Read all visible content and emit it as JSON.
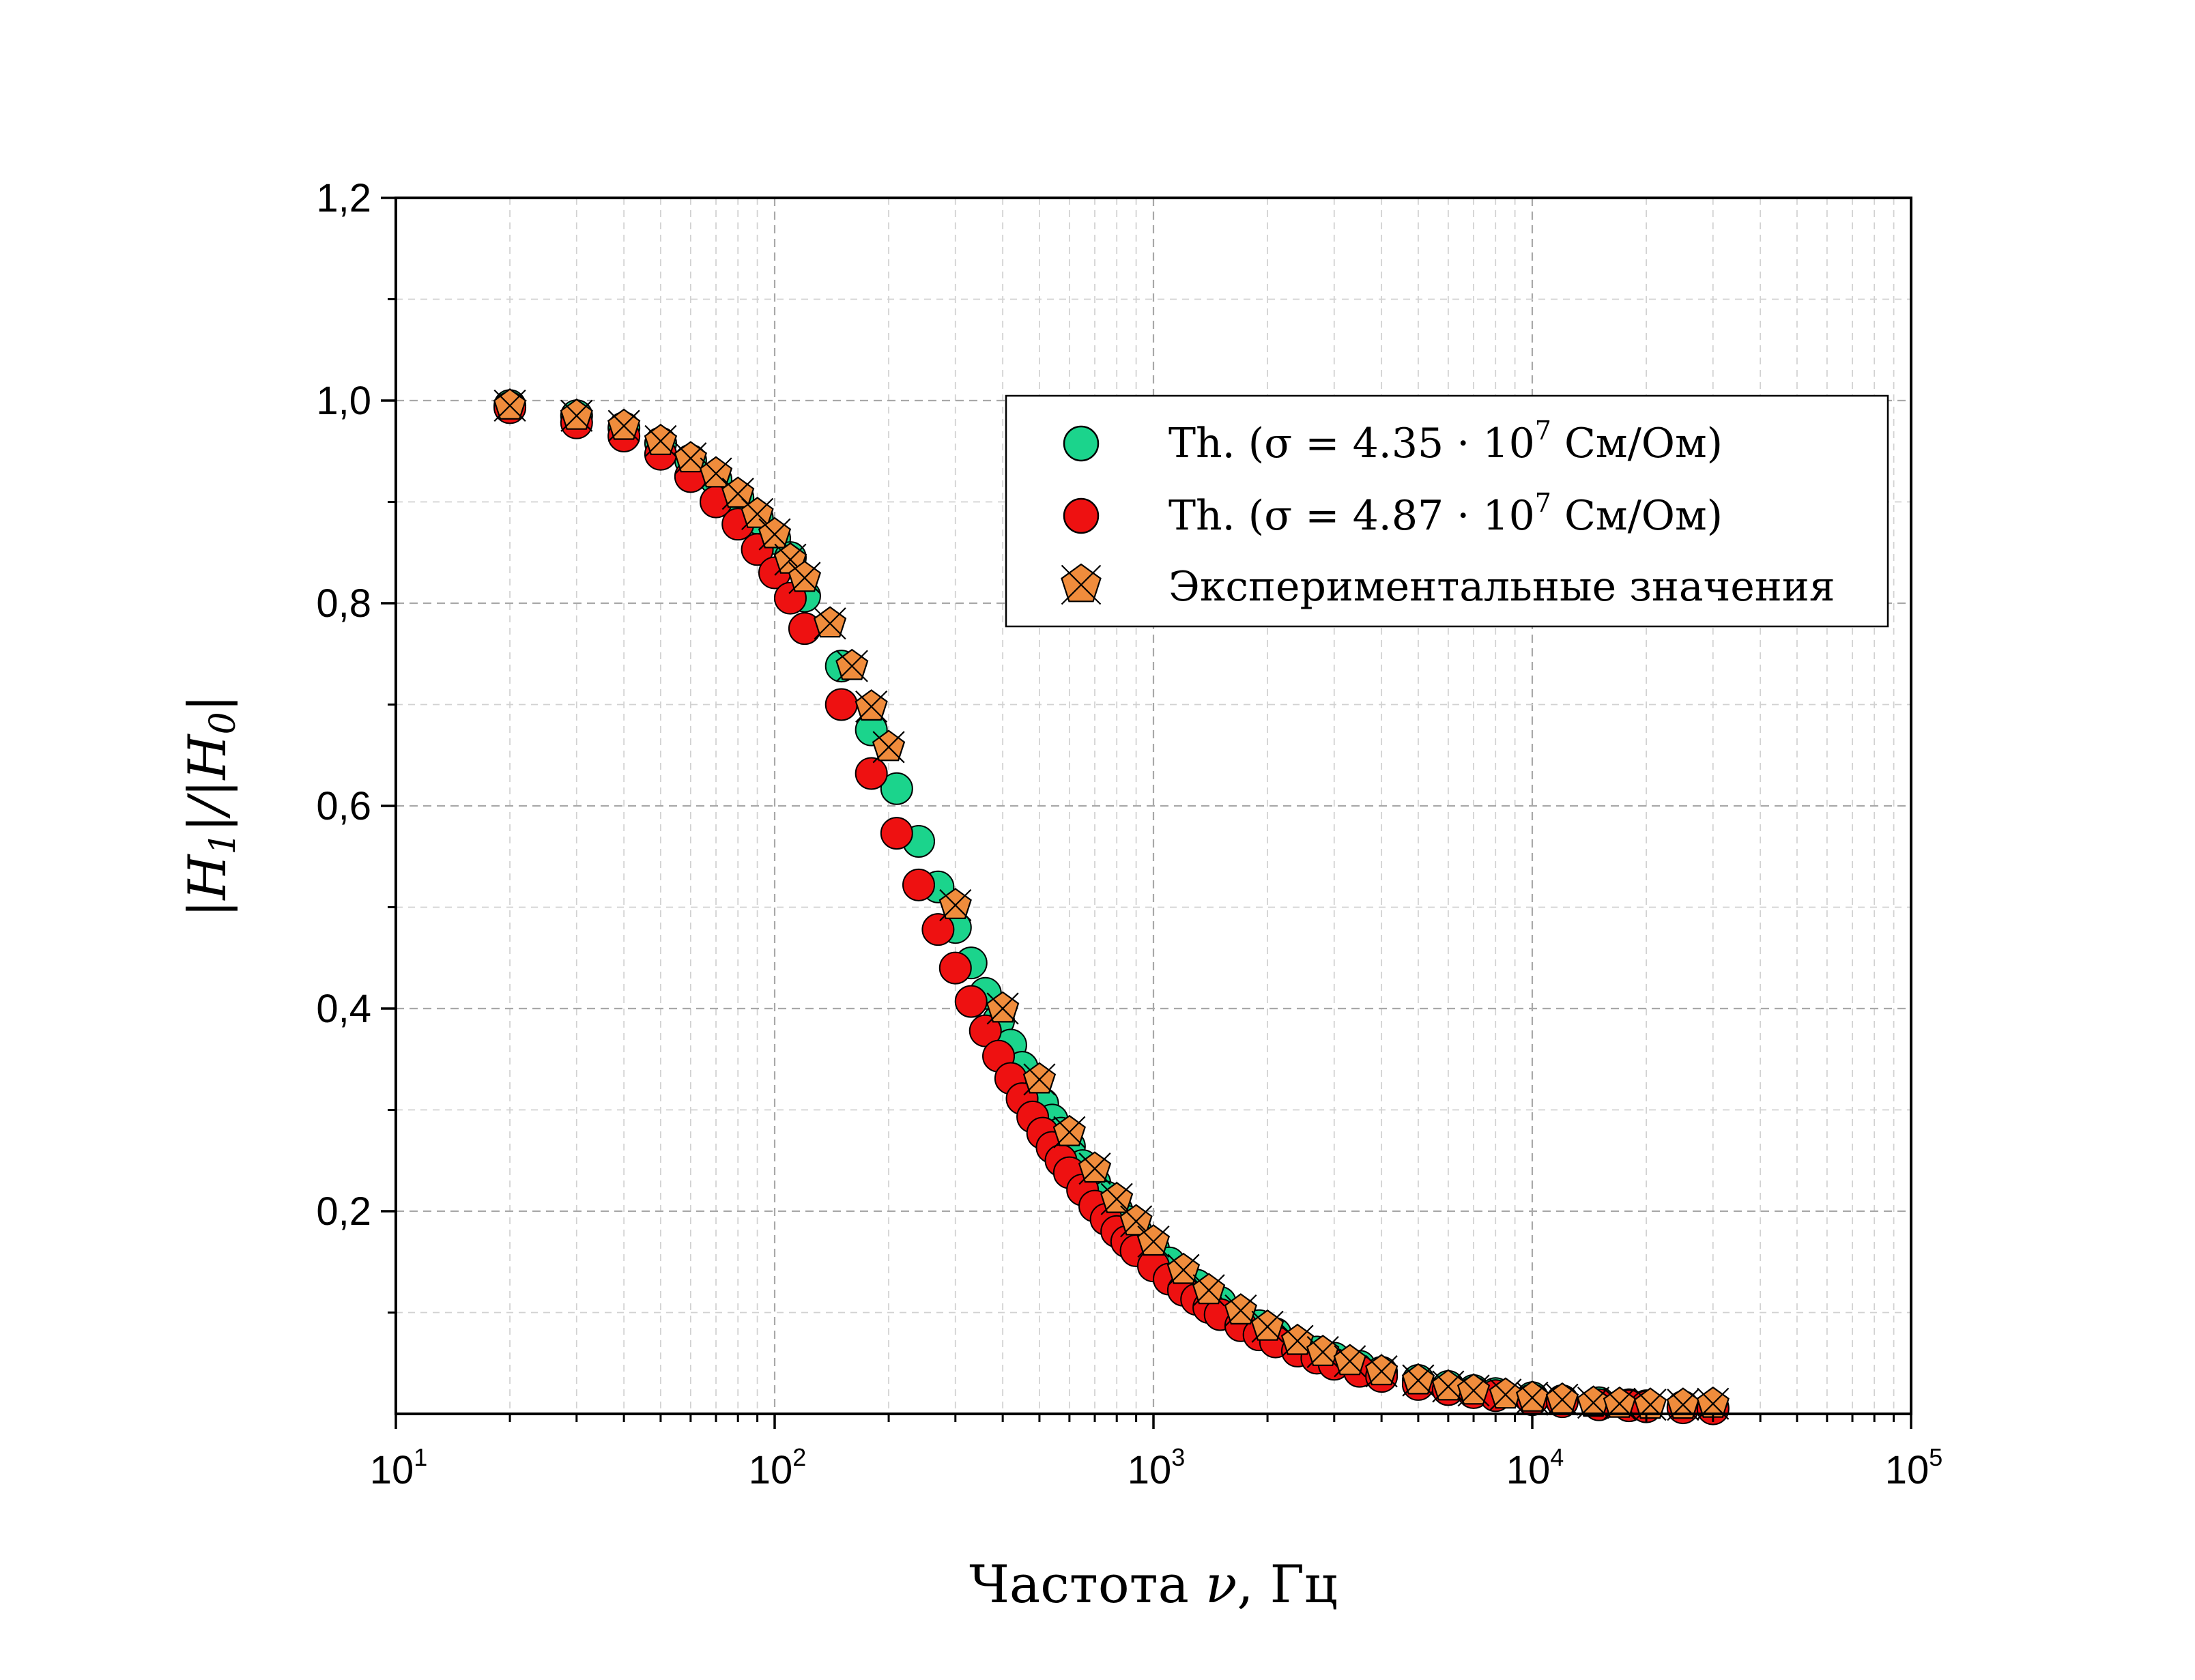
{
  "chart_data": {
    "type": "scatter",
    "title": "",
    "xlabel_text": "Частота ",
    "xlabel_var": "ν",
    "xlabel_unit": ", Гц",
    "ylabel": "|H1|/|H0|",
    "x_scale": "log",
    "xlim": [
      10,
      100000
    ],
    "ylim": [
      0,
      1.2
    ],
    "x_ticks": [
      {
        "base": "10",
        "exp": "1"
      },
      {
        "base": "10",
        "exp": "2"
      },
      {
        "base": "10",
        "exp": "3"
      },
      {
        "base": "10",
        "exp": "4"
      },
      {
        "base": "10",
        "exp": "5"
      }
    ],
    "y_ticks": [
      {
        "value": 0.2,
        "label": "0,2"
      },
      {
        "value": 0.4,
        "label": "0,4"
      },
      {
        "value": 0.6,
        "label": "0,6"
      },
      {
        "value": 0.8,
        "label": "0,8"
      },
      {
        "value": 1.0,
        "label": "1,0"
      },
      {
        "value": 1.2,
        "label": "1,2"
      }
    ],
    "grid": true,
    "legend_position": "top-right",
    "series": [
      {
        "name_prefix": "Th. (σ = 4.35 · 10",
        "name_exp": "7",
        "name_suffix": " См/Ом)",
        "marker": "circle",
        "color": "#1bd48c",
        "x": [
          20,
          30,
          40,
          50,
          60,
          70,
          80,
          90,
          100,
          110,
          120,
          150,
          180,
          210,
          240,
          270,
          300,
          330,
          360,
          390,
          420,
          450,
          480,
          510,
          540,
          570,
          600,
          650,
          700,
          750,
          800,
          850,
          900,
          1000,
          1100,
          1200,
          1300,
          1400,
          1500,
          1700,
          1900,
          2100,
          2400,
          2700,
          3000,
          3500,
          4000,
          5000,
          6000,
          7000,
          8000,
          10000,
          12000,
          15000,
          18000,
          20000,
          25000,
          30000
        ],
        "y": [
          0.995,
          0.985,
          0.973,
          0.958,
          0.941,
          0.922,
          0.904,
          0.884,
          0.864,
          0.845,
          0.807,
          0.738,
          0.675,
          0.617,
          0.565,
          0.52,
          0.48,
          0.445,
          0.415,
          0.388,
          0.364,
          0.342,
          0.322,
          0.306,
          0.29,
          0.277,
          0.264,
          0.245,
          0.228,
          0.214,
          0.201,
          0.19,
          0.18,
          0.163,
          0.149,
          0.137,
          0.127,
          0.118,
          0.11,
          0.097,
          0.087,
          0.079,
          0.069,
          0.061,
          0.055,
          0.047,
          0.041,
          0.033,
          0.027,
          0.023,
          0.02,
          0.016,
          0.013,
          0.011,
          0.009,
          0.008,
          0.007,
          0.006
        ]
      },
      {
        "name_prefix": "Th. (σ = 4.87 · 10",
        "name_exp": "7",
        "name_suffix": " См/Ом)",
        "marker": "circle",
        "color": "#ee1111",
        "x": [
          20,
          30,
          40,
          50,
          60,
          70,
          80,
          90,
          100,
          110,
          120,
          150,
          180,
          210,
          240,
          270,
          300,
          330,
          360,
          390,
          420,
          450,
          480,
          510,
          540,
          570,
          600,
          650,
          700,
          750,
          800,
          850,
          900,
          1000,
          1100,
          1200,
          1300,
          1400,
          1500,
          1700,
          1900,
          2100,
          2400,
          2700,
          3000,
          3500,
          4000,
          5000,
          6000,
          7000,
          8000,
          10000,
          12000,
          15000,
          18000,
          20000,
          25000,
          30000
        ],
        "y": [
          0.993,
          0.978,
          0.965,
          0.947,
          0.925,
          0.9,
          0.878,
          0.853,
          0.83,
          0.805,
          0.775,
          0.7,
          0.632,
          0.573,
          0.522,
          0.478,
          0.44,
          0.407,
          0.378,
          0.353,
          0.331,
          0.311,
          0.293,
          0.277,
          0.263,
          0.25,
          0.238,
          0.221,
          0.205,
          0.192,
          0.18,
          0.17,
          0.161,
          0.146,
          0.133,
          0.122,
          0.113,
          0.105,
          0.098,
          0.087,
          0.078,
          0.071,
          0.062,
          0.055,
          0.049,
          0.042,
          0.037,
          0.029,
          0.024,
          0.021,
          0.018,
          0.014,
          0.012,
          0.009,
          0.008,
          0.007,
          0.006,
          0.005
        ]
      },
      {
        "name": "Экспериментальные значения",
        "marker": "pentagon-x",
        "color": "#f08c3c",
        "x": [
          20,
          30,
          40,
          50,
          60,
          70,
          80,
          90,
          100,
          110,
          120,
          140,
          160,
          180,
          200,
          300,
          400,
          500,
          600,
          700,
          800,
          900,
          1000,
          1200,
          1400,
          1700,
          2000,
          2400,
          2800,
          3300,
          4000,
          5000,
          6000,
          7000,
          8500,
          10000,
          12000,
          14500,
          17000,
          20500,
          25000,
          30000
        ],
        "y": [
          0.995,
          0.985,
          0.975,
          0.96,
          0.943,
          0.928,
          0.908,
          0.888,
          0.868,
          0.843,
          0.825,
          0.78,
          0.738,
          0.698,
          0.658,
          0.502,
          0.4,
          0.33,
          0.278,
          0.242,
          0.212,
          0.19,
          0.17,
          0.142,
          0.122,
          0.102,
          0.086,
          0.072,
          0.061,
          0.052,
          0.042,
          0.033,
          0.027,
          0.023,
          0.019,
          0.016,
          0.014,
          0.011,
          0.01,
          0.009,
          0.009,
          0.01
        ]
      }
    ]
  }
}
